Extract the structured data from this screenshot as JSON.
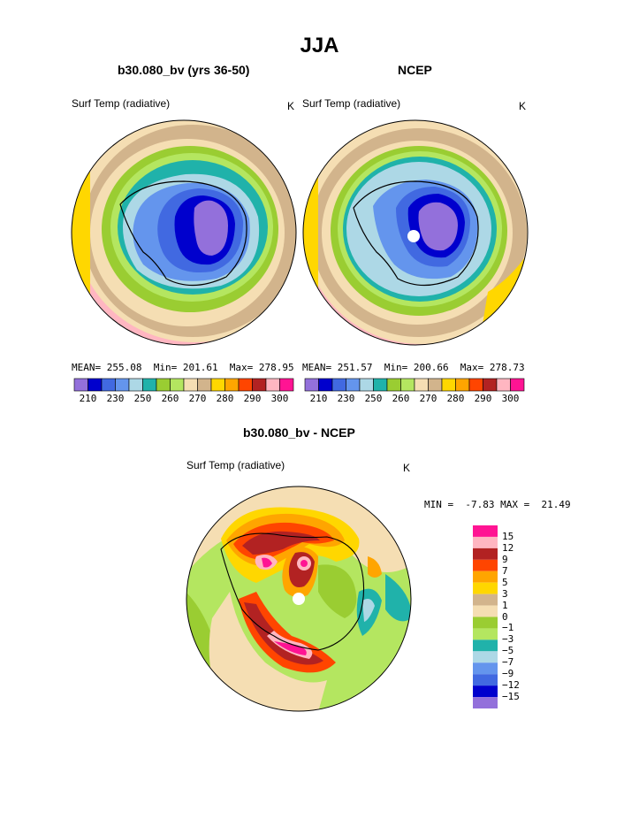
{
  "figure": {
    "season_title": "JJA"
  },
  "panels": [
    {
      "title": "b30.080_bv (yrs 36-50)",
      "variable": "Surf Temp (radiative)",
      "unit": "K",
      "stats": {
        "mean": "255.08",
        "min": "201.61",
        "max": "278.95"
      },
      "stats_text": "MEAN= 255.08  Min= 201.61  Max= 278.95"
    },
    {
      "title": "NCEP",
      "variable": "Surf Temp (radiative)",
      "unit": "K",
      "stats": {
        "mean": "251.57",
        "min": "200.66",
        "max": "278.73"
      },
      "stats_text": "MEAN= 251.57  Min= 200.66  Max= 278.73"
    },
    {
      "title": "b30.080_bv - NCEP",
      "variable": "Surf Temp (radiative)",
      "unit": "K",
      "stats": {
        "min": "-7.83",
        "max": "21.49"
      },
      "stats_text": "MIN =  -7.83 MAX =  21.49"
    }
  ],
  "colorbars": {
    "abs": {
      "colors": [
        "#9370db",
        "#0000cd",
        "#4169e1",
        "#6495ed",
        "#add8e6",
        "#20b2aa",
        "#9acd32",
        "#b4e660",
        "#f5deb3",
        "#d2b48c",
        "#ffd700",
        "#ffa500",
        "#ff4500",
        "#b22222",
        "#ffb6c1",
        "#ff1493"
      ],
      "labels": [
        "210",
        "230",
        "250",
        "260",
        "270",
        "280",
        "290",
        "300"
      ]
    },
    "diff": {
      "colors": [
        "#ff1493",
        "#ffb6c1",
        "#b22222",
        "#ff4500",
        "#ffa500",
        "#ffd700",
        "#d2b48c",
        "#f5deb3",
        "#9acd32",
        "#b4e660",
        "#20b2aa",
        "#add8e6",
        "#6495ed",
        "#4169e1",
        "#0000cd",
        "#9370db"
      ],
      "labels": [
        "15",
        "12",
        "9",
        "7",
        "5",
        "3",
        "1",
        "0",
        "−1",
        "−3",
        "−5",
        "−7",
        "−9",
        "−12",
        "−15"
      ]
    }
  },
  "map_fills": {
    "absolute": [
      "#ff1493",
      "#f5deb3",
      "#d2b48c",
      "#9acd32",
      "#b4e660",
      "#20b2aa",
      "#add8e6",
      "#6495ed",
      "#4169e1",
      "#0000cd",
      "#9370db"
    ],
    "difference": [
      "#f5deb3",
      "#b4e660",
      "#ffd700",
      "#ffa500",
      "#ff4500",
      "#b22222",
      "#ffb6c1",
      "#ff1493",
      "#20b2aa",
      "#add8e6"
    ]
  }
}
